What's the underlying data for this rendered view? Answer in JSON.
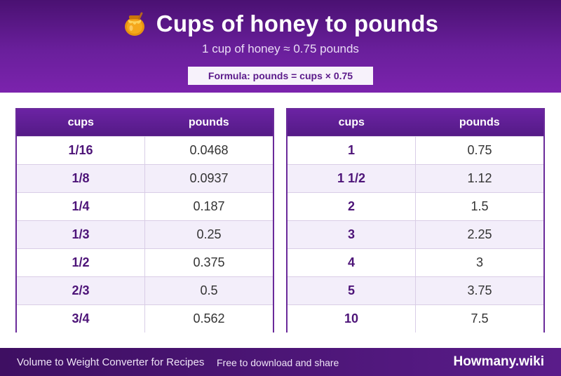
{
  "header": {
    "title": "Cups of honey to pounds",
    "subtitle": "1 cup of honey ≈ 0.75 pounds",
    "formula": "Formula: pounds = cups × 0.75",
    "icon": "honey-pot-icon"
  },
  "tables": {
    "left": {
      "headers": [
        "cups",
        "pounds"
      ],
      "rows": [
        [
          "1/16",
          "0.0468"
        ],
        [
          "1/8",
          "0.0937"
        ],
        [
          "1/4",
          "0.187"
        ],
        [
          "1/3",
          "0.25"
        ],
        [
          "1/2",
          "0.375"
        ],
        [
          "2/3",
          "0.5"
        ],
        [
          "3/4",
          "0.562"
        ]
      ]
    },
    "right": {
      "headers": [
        "cups",
        "pounds"
      ],
      "rows": [
        [
          "1",
          "0.75"
        ],
        [
          "1 1/2",
          "1.12"
        ],
        [
          "2",
          "1.5"
        ],
        [
          "3",
          "2.25"
        ],
        [
          "4",
          "3"
        ],
        [
          "5",
          "3.75"
        ],
        [
          "10",
          "7.5"
        ]
      ]
    }
  },
  "footer": {
    "left": "Volume to Weight Converter for Recipes",
    "middle": "Free to download and share",
    "brand": "Howmany.wiki"
  },
  "colors": {
    "accent": "#6a1f9c",
    "header_dark": "#4a1172",
    "row_alt": "#f3eefa"
  }
}
